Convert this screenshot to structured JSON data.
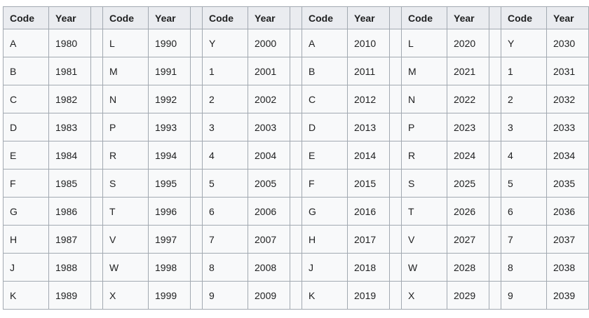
{
  "colors": {
    "page_bg": "#ffffff",
    "table_border": "#a2a9b1",
    "header_bg": "#eaecf0",
    "cell_bg": "#f8f9fa",
    "text": "#202122"
  },
  "layout_widths": {
    "code_col": 65,
    "year_col": 60,
    "spacer_col": 17
  },
  "table": {
    "code_header": "Code",
    "year_header": "Year",
    "pair_count": 6,
    "rows": [
      [
        {
          "code": "A",
          "year": "1980"
        },
        {
          "code": "L",
          "year": "1990"
        },
        {
          "code": "Y",
          "year": "2000"
        },
        {
          "code": "A",
          "year": "2010"
        },
        {
          "code": "L",
          "year": "2020"
        },
        {
          "code": "Y",
          "year": "2030"
        }
      ],
      [
        {
          "code": "B",
          "year": "1981"
        },
        {
          "code": "M",
          "year": "1991"
        },
        {
          "code": "1",
          "year": "2001"
        },
        {
          "code": "B",
          "year": "2011"
        },
        {
          "code": "M",
          "year": "2021"
        },
        {
          "code": "1",
          "year": "2031"
        }
      ],
      [
        {
          "code": "C",
          "year": "1982"
        },
        {
          "code": "N",
          "year": "1992"
        },
        {
          "code": "2",
          "year": "2002"
        },
        {
          "code": "C",
          "year": "2012"
        },
        {
          "code": "N",
          "year": "2022"
        },
        {
          "code": "2",
          "year": "2032"
        }
      ],
      [
        {
          "code": "D",
          "year": "1983"
        },
        {
          "code": "P",
          "year": "1993"
        },
        {
          "code": "3",
          "year": "2003"
        },
        {
          "code": "D",
          "year": "2013"
        },
        {
          "code": "P",
          "year": "2023"
        },
        {
          "code": "3",
          "year": "2033"
        }
      ],
      [
        {
          "code": "E",
          "year": "1984"
        },
        {
          "code": "R",
          "year": "1994"
        },
        {
          "code": "4",
          "year": "2004"
        },
        {
          "code": "E",
          "year": "2014"
        },
        {
          "code": "R",
          "year": "2024"
        },
        {
          "code": "4",
          "year": "2034"
        }
      ],
      [
        {
          "code": "F",
          "year": "1985"
        },
        {
          "code": "S",
          "year": "1995"
        },
        {
          "code": "5",
          "year": "2005"
        },
        {
          "code": "F",
          "year": "2015"
        },
        {
          "code": "S",
          "year": "2025"
        },
        {
          "code": "5",
          "year": "2035"
        }
      ],
      [
        {
          "code": "G",
          "year": "1986"
        },
        {
          "code": "T",
          "year": "1996"
        },
        {
          "code": "6",
          "year": "2006"
        },
        {
          "code": "G",
          "year": "2016"
        },
        {
          "code": "T",
          "year": "2026"
        },
        {
          "code": "6",
          "year": "2036"
        }
      ],
      [
        {
          "code": "H",
          "year": "1987"
        },
        {
          "code": "V",
          "year": "1997"
        },
        {
          "code": "7",
          "year": "2007"
        },
        {
          "code": "H",
          "year": "2017"
        },
        {
          "code": "V",
          "year": "2027"
        },
        {
          "code": "7",
          "year": "2037"
        }
      ],
      [
        {
          "code": "J",
          "year": "1988"
        },
        {
          "code": "W",
          "year": "1998"
        },
        {
          "code": "8",
          "year": "2008"
        },
        {
          "code": "J",
          "year": "2018"
        },
        {
          "code": "W",
          "year": "2028"
        },
        {
          "code": "8",
          "year": "2038"
        }
      ],
      [
        {
          "code": "K",
          "year": "1989"
        },
        {
          "code": "X",
          "year": "1999"
        },
        {
          "code": "9",
          "year": "2009"
        },
        {
          "code": "K",
          "year": "2019"
        },
        {
          "code": "X",
          "year": "2029"
        },
        {
          "code": "9",
          "year": "2039"
        }
      ]
    ]
  }
}
